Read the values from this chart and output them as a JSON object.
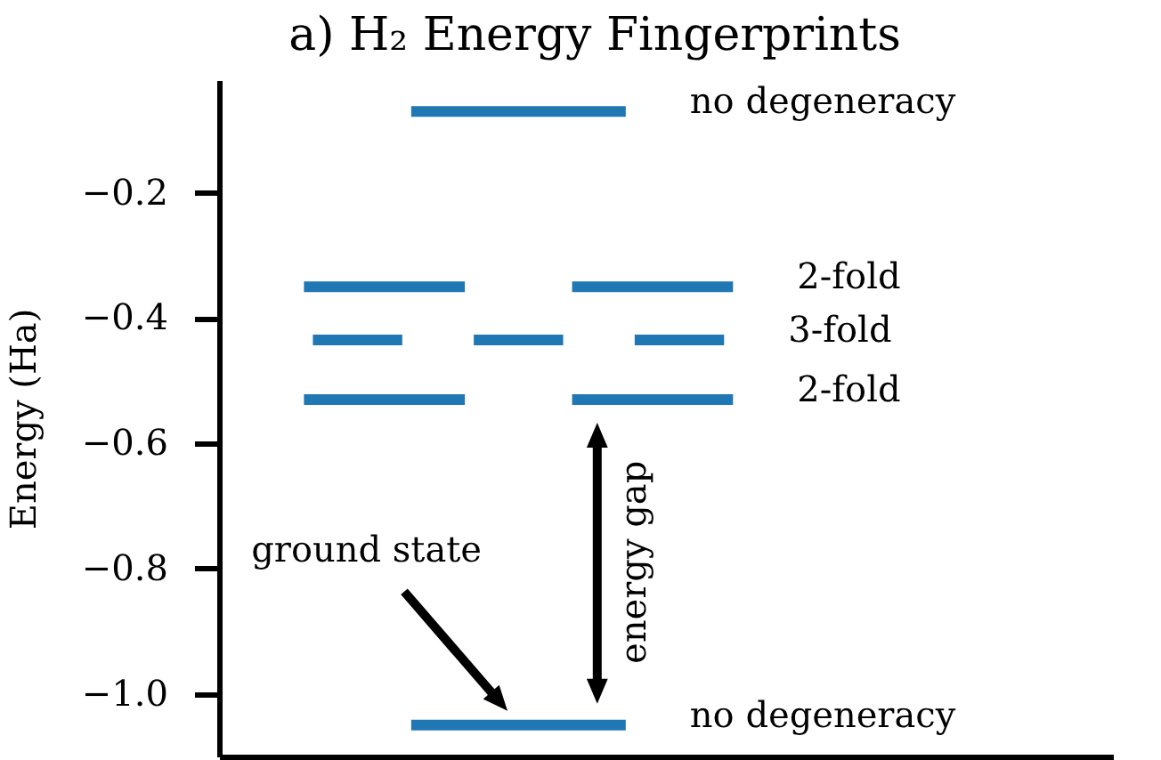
{
  "chart_data": {
    "type": "line",
    "title": "a) H₂ Energy Fingerprints",
    "ylabel": "Energy (Ha)",
    "categories": [
      null,
      null,
      null,
      null,
      null,
      null,
      null,
      null,
      null,
      null,
      null,
      null,
      null,
      null,
      null,
      null,
      null,
      null,
      null,
      null,
      null,
      null,
      null,
      null,
      null,
      null,
      null,
      null,
      null,
      null,
      null,
      null,
      null,
      null,
      null,
      null,
      null,
      null,
      null,
      null,
      null,
      null,
      null,
      null,
      null,
      null,
      null,
      null,
      null,
      null,
      null,
      null,
      null,
      null,
      null,
      null,
      null,
      null,
      null,
      null,
      null,
      null,
      null,
      null,
      null,
      null,
      null,
      null,
      null,
      null,
      null,
      null,
      null,
      null,
      null,
      null,
      null,
      null,
      null,
      null,
      null,
      null,
      null,
      null,
      null,
      null,
      null,
      null,
      null,
      null,
      null,
      null,
      null,
      null,
      null,
      null,
      null,
      null,
      null,
      null
    ],
    "series": [
      {
        "name": "no degeneracy",
        "color": "#1f77b4",
        "values": [
          null,
          null,
          null,
          null,
          null,
          null,
          null,
          null,
          null,
          null,
          null,
          null,
          null,
          null,
          null,
          null,
          null,
          null,
          null,
          null,
          null,
          -0.07,
          -0.07,
          -0.07,
          -0.07,
          -0.07,
          -0.07,
          -0.07,
          -0.07,
          -0.07,
          -0.07,
          -0.07,
          -0.07,
          -0.07,
          -0.07,
          -0.07,
          -0.07,
          -0.07,
          -0.07,
          -0.07,
          -0.07,
          -0.07,
          -0.07,
          -0.07,
          -0.07,
          -0.07,
          null,
          null,
          null,
          null,
          null,
          null,
          null,
          null,
          null,
          null,
          null,
          null,
          null,
          null,
          null,
          null,
          null,
          null,
          null,
          null,
          null,
          null,
          null,
          null,
          null,
          null,
          null,
          null,
          null,
          null,
          null,
          null,
          null,
          null,
          null,
          null,
          null,
          null,
          null,
          null,
          null,
          null,
          null,
          null,
          null,
          null,
          null,
          null,
          null,
          null,
          null,
          null,
          null,
          null
        ]
      },
      {
        "name": "2-fold",
        "color": "#1f77b4",
        "values": [
          null,
          null,
          null,
          null,
          null,
          null,
          null,
          null,
          null,
          -0.35,
          -0.35,
          -0.35,
          -0.35,
          -0.35,
          -0.35,
          -0.35,
          -0.35,
          -0.35,
          -0.35,
          -0.35,
          -0.35,
          -0.35,
          -0.35,
          -0.35,
          -0.35,
          -0.35,
          -0.35,
          -0.35,
          null,
          null,
          null,
          null,
          null,
          null,
          null,
          null,
          null,
          null,
          null,
          -0.35,
          -0.35,
          -0.35,
          -0.35,
          -0.35,
          -0.35,
          -0.35,
          -0.35,
          -0.35,
          -0.35,
          -0.35,
          -0.35,
          -0.35,
          -0.35,
          -0.35,
          -0.35,
          -0.35,
          -0.35,
          -0.35,
          null,
          null,
          null,
          null,
          null,
          null,
          null,
          null,
          null,
          null,
          null,
          null,
          null,
          null,
          null,
          null,
          null,
          null,
          null,
          null,
          null,
          null,
          null,
          null,
          null,
          null,
          null,
          null,
          null,
          null,
          null,
          null,
          null,
          null,
          null,
          null,
          null,
          null,
          null,
          null,
          null,
          null
        ]
      },
      {
        "name": "3-fold",
        "color": "#1f77b4",
        "values": [
          null,
          null,
          null,
          null,
          null,
          null,
          null,
          null,
          null,
          null,
          -0.435,
          -0.435,
          -0.435,
          -0.435,
          -0.435,
          -0.435,
          -0.435,
          -0.435,
          -0.435,
          -0.435,
          -0.435,
          null,
          null,
          null,
          null,
          null,
          null,
          null,
          -0.435,
          -0.435,
          -0.435,
          -0.435,
          -0.435,
          -0.435,
          -0.435,
          -0.435,
          -0.435,
          -0.435,
          -0.435,
          null,
          null,
          null,
          null,
          null,
          null,
          null,
          -0.435,
          -0.435,
          -0.435,
          -0.435,
          -0.435,
          -0.435,
          -0.435,
          -0.435,
          -0.435,
          -0.435,
          -0.435,
          null,
          null,
          null,
          null,
          null,
          null,
          null,
          null,
          null,
          null,
          null,
          null,
          null,
          null,
          null,
          null,
          null,
          null,
          null,
          null,
          null,
          null,
          null,
          null,
          null,
          null,
          null,
          null,
          null,
          null,
          null,
          null,
          null,
          null,
          null,
          null,
          null,
          null,
          null,
          null,
          null,
          null,
          null
        ]
      },
      {
        "name": "2-fold",
        "color": "#1f77b4",
        "values": [
          null,
          null,
          null,
          null,
          null,
          null,
          null,
          null,
          null,
          -0.53,
          -0.53,
          -0.53,
          -0.53,
          -0.53,
          -0.53,
          -0.53,
          -0.53,
          -0.53,
          -0.53,
          -0.53,
          -0.53,
          -0.53,
          -0.53,
          -0.53,
          -0.53,
          -0.53,
          -0.53,
          -0.53,
          null,
          null,
          null,
          null,
          null,
          null,
          null,
          null,
          null,
          null,
          null,
          -0.53,
          -0.53,
          -0.53,
          -0.53,
          -0.53,
          -0.53,
          -0.53,
          -0.53,
          -0.53,
          -0.53,
          -0.53,
          -0.53,
          -0.53,
          -0.53,
          -0.53,
          -0.53,
          -0.53,
          -0.53,
          -0.53,
          null,
          null,
          null,
          null,
          null,
          null,
          null,
          null,
          null,
          null,
          null,
          null,
          null,
          null,
          null,
          null,
          null,
          null,
          null,
          null,
          null,
          null,
          null,
          null,
          null,
          null,
          null,
          null,
          null,
          null,
          null,
          null,
          null,
          null,
          null,
          null,
          null,
          null,
          null,
          null,
          null,
          null
        ]
      },
      {
        "name": "no degeneracy",
        "color": "#1f77b4",
        "values": [
          null,
          null,
          null,
          null,
          null,
          null,
          null,
          null,
          null,
          null,
          null,
          null,
          null,
          null,
          null,
          null,
          null,
          null,
          null,
          null,
          null,
          -1.05,
          -1.05,
          -1.05,
          -1.05,
          -1.05,
          -1.05,
          -1.05,
          -1.05,
          -1.05,
          -1.05,
          -1.05,
          -1.05,
          -1.05,
          -1.05,
          -1.05,
          -1.05,
          -1.05,
          -1.05,
          -1.05,
          -1.05,
          -1.05,
          -1.05,
          -1.05,
          -1.05,
          -1.05,
          null,
          null,
          null,
          null,
          null,
          null,
          null,
          null,
          null,
          null,
          null,
          null,
          null,
          null,
          null,
          null,
          null,
          null,
          null,
          null,
          null,
          null,
          null,
          null,
          null,
          null,
          null,
          null,
          null,
          null,
          null,
          null,
          null,
          null,
          null,
          null,
          null,
          null,
          null,
          null,
          null,
          null,
          null,
          null,
          null,
          null,
          null,
          null,
          null,
          null,
          null,
          null,
          null,
          null
        ]
      }
    ],
    "ylim": [
      -1.1,
      -0.02
    ],
    "yticks": [
      {
        "value": -1.0,
        "label": "−1.0"
      },
      -0.8,
      -0.6,
      -0.4,
      -0.2
    ],
    "annotations": [
      "ground state",
      "energy gap"
    ],
    "tick_labels": "y"
  }
}
